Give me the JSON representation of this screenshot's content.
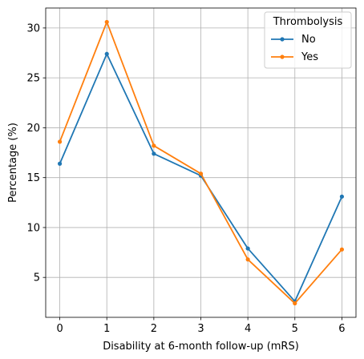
{
  "chart_data": {
    "type": "line",
    "title": "",
    "xlabel": "Disability at 6-month follow-up (mRS)",
    "ylabel": "Percentage (%)",
    "x": [
      0,
      1,
      2,
      3,
      4,
      5,
      6
    ],
    "xticks": [
      "0",
      "1",
      "2",
      "3",
      "4",
      "5",
      "6"
    ],
    "yticks": [
      5,
      10,
      15,
      20,
      25,
      30
    ],
    "xlim": [
      -0.3,
      6.3
    ],
    "ylim": [
      1.0,
      32.0
    ],
    "grid": true,
    "legend": {
      "title": "Thrombolysis",
      "placement": "top-right"
    },
    "series": [
      {
        "name": "No",
        "color": "#1f77b4",
        "marker": "circle",
        "values": [
          16.4,
          27.4,
          17.4,
          15.2,
          7.9,
          2.6,
          13.1
        ]
      },
      {
        "name": "Yes",
        "color": "#ff7f0e",
        "marker": "circle",
        "values": [
          18.6,
          30.6,
          18.2,
          15.4,
          6.8,
          2.4,
          7.8
        ]
      }
    ]
  }
}
